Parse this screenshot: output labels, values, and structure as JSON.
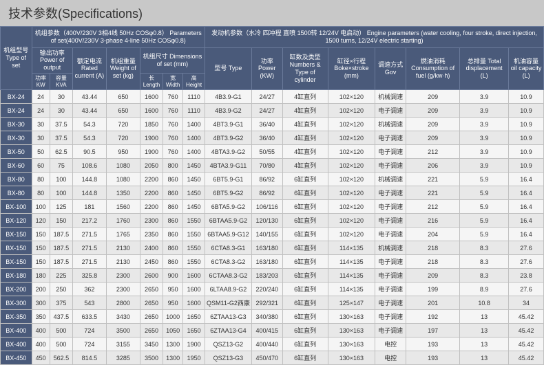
{
  "title": "技术参数(Specifications)",
  "header": {
    "groupLeft": "机组参数（400V/230V 3相4线 50Hz COSφ0.8）\nParameters of set(400V/230V 3-phase 4-line 50Hz COSφ0.8)",
    "groupRight": "发动机参数（水冷 四冲程 直喷 1500转 12/24V 电启动）\nEngine parameters (water cooling, four stroke,\ndirect injection, 1500 turns, 12/24V electric starting)",
    "cols": {
      "typeSet": "机组型号\nType of set",
      "powerOut": "输出功率\nPower of output",
      "kw": "功率KW",
      "kva": "容量KVA",
      "rated": "额定电流\nRated\ncurrent\n(A)",
      "weight": "机组重量\nWeight\nof set\n(kg)",
      "dim": "机组尺寸\nDimensions\nof set\n(mm)",
      "len": "长\nLength",
      "wid": "宽\nWidth",
      "hei": "高\nHeight",
      "engType": "型号\nType",
      "engPow": "功率\nPower\n(KW)",
      "cyl": "缸数及类型\nNumbers\n& Type of\ncylinder",
      "bore": "缸径×行程\nBoke×stroke\n(mm)",
      "gov": "调速方式\nGov",
      "fuel": "燃油消耗\nConsumption\nof fuel\n(g/kw·h)",
      "disp": "总排量\nTotal\ndisplacement\n(L)",
      "oil": "机油容量\noil\ncapacity\n(L)"
    }
  },
  "rows": [
    [
      "BX-24",
      "24",
      "30",
      "43.44",
      "650",
      "1600",
      "760",
      "1110",
      "4B3.9-G1",
      "24/27",
      "4缸直列",
      "102×120",
      "机械调速",
      "209",
      "3.9",
      "10.9"
    ],
    [
      "BX-24",
      "24",
      "30",
      "43.44",
      "650",
      "1600",
      "760",
      "1110",
      "4B3.9-G2",
      "24/27",
      "4缸直列",
      "102×120",
      "电子调速",
      "209",
      "3.9",
      "10.9"
    ],
    [
      "BX-30",
      "30",
      "37.5",
      "54.3",
      "720",
      "1850",
      "760",
      "1400",
      "4BT3.9-G1",
      "36/40",
      "4缸直列",
      "102×120",
      "机械调速",
      "209",
      "3.9",
      "10.9"
    ],
    [
      "BX-30",
      "30",
      "37.5",
      "54.3",
      "720",
      "1900",
      "760",
      "1400",
      "4BT3.9-G2",
      "36/40",
      "4缸直列",
      "102×120",
      "电子调速",
      "209",
      "3.9",
      "10.9"
    ],
    [
      "BX-50",
      "50",
      "62.5",
      "90.5",
      "950",
      "1900",
      "760",
      "1400",
      "4BTA3.9-G2",
      "50/55",
      "4缸直列",
      "102×120",
      "电子调速",
      "212",
      "3.9",
      "10.9"
    ],
    [
      "BX-60",
      "60",
      "75",
      "108.6",
      "1080",
      "2050",
      "800",
      "1450",
      "4BTA3.9-G11",
      "70/80",
      "4缸直列",
      "102×120",
      "电子调速",
      "206",
      "3.9",
      "10.9"
    ],
    [
      "BX-80",
      "80",
      "100",
      "144.8",
      "1080",
      "2200",
      "860",
      "1450",
      "6BT5.9-G1",
      "86/92",
      "6缸直列",
      "102×120",
      "机械调速",
      "221",
      "5.9",
      "16.4"
    ],
    [
      "BX-80",
      "80",
      "100",
      "144.8",
      "1350",
      "2200",
      "860",
      "1450",
      "6BT5.9-G2",
      "86/92",
      "6缸直列",
      "102×120",
      "电子调速",
      "221",
      "5.9",
      "16.4"
    ],
    [
      "BX-100",
      "100",
      "125",
      "181",
      "1560",
      "2200",
      "860",
      "1450",
      "6BTA5.9-G2",
      "106/116",
      "6缸直列",
      "102×120",
      "电子调速",
      "212",
      "5.9",
      "16.4"
    ],
    [
      "BX-120",
      "120",
      "150",
      "217.2",
      "1760",
      "2300",
      "860",
      "1550",
      "6BTAA5.9-G2",
      "120/130",
      "6缸直列",
      "102×120",
      "电子调速",
      "216",
      "5.9",
      "16.4"
    ],
    [
      "BX-150",
      "150",
      "187.5",
      "271.5",
      "1765",
      "2350",
      "860",
      "1550",
      "6BTAA5.9-G12",
      "140/155",
      "6缸直列",
      "102×120",
      "电子调速",
      "204",
      "5.9",
      "16.4"
    ],
    [
      "BX-150",
      "150",
      "187.5",
      "271.5",
      "2130",
      "2400",
      "860",
      "1550",
      "6CTA8.3-G1",
      "163/180",
      "6缸直列",
      "114×135",
      "机械调速",
      "218",
      "8.3",
      "27.6"
    ],
    [
      "BX-150",
      "150",
      "187.5",
      "271.5",
      "2130",
      "2450",
      "860",
      "1550",
      "6CTA8.3-G2",
      "163/180",
      "6缸直列",
      "114×135",
      "电子调速",
      "218",
      "8.3",
      "27.6"
    ],
    [
      "BX-180",
      "180",
      "225",
      "325.8",
      "2300",
      "2600",
      "900",
      "1600",
      "6CTAA8.3-G2",
      "183/203",
      "6缸直列",
      "114×135",
      "电子调速",
      "209",
      "8.3",
      "23.8"
    ],
    [
      "BX-200",
      "200",
      "250",
      "362",
      "2300",
      "2650",
      "950",
      "1600",
      "6LTAA8.9-G2",
      "220/240",
      "6缸直列",
      "114×135",
      "电子调速",
      "199",
      "8.9",
      "27.6"
    ],
    [
      "BX-300",
      "300",
      "375",
      "543",
      "2800",
      "2650",
      "950",
      "1600",
      "QSM11-G2西康",
      "292/321",
      "6缸直列",
      "125×147",
      "电子调速",
      "201",
      "10.8",
      "34"
    ],
    [
      "BX-350",
      "350",
      "437.5",
      "633.5",
      "3430",
      "2650",
      "1000",
      "1650",
      "6ZTAA13-G3",
      "340/380",
      "6缸直列",
      "130×163",
      "电子调速",
      "192",
      "13",
      "45.42"
    ],
    [
      "BX-400",
      "400",
      "500",
      "724",
      "3500",
      "2650",
      "1050",
      "1650",
      "6ZTAA13-G4",
      "400/415",
      "6缸直列",
      "130×163",
      "电子调速",
      "197",
      "13",
      "45.42"
    ],
    [
      "BX-400",
      "400",
      "500",
      "724",
      "3155",
      "3450",
      "1300",
      "1900",
      "QSZ13-G2",
      "400/440",
      "6缸直列",
      "130×163",
      "电控",
      "193",
      "13",
      "45.42"
    ],
    [
      "BX-450",
      "450",
      "562.5",
      "814.5",
      "3285",
      "3500",
      "1300",
      "1950",
      "QSZ13-G3",
      "450/470",
      "6缸直列",
      "130×163",
      "电控",
      "193",
      "13",
      "45.42"
    ]
  ]
}
